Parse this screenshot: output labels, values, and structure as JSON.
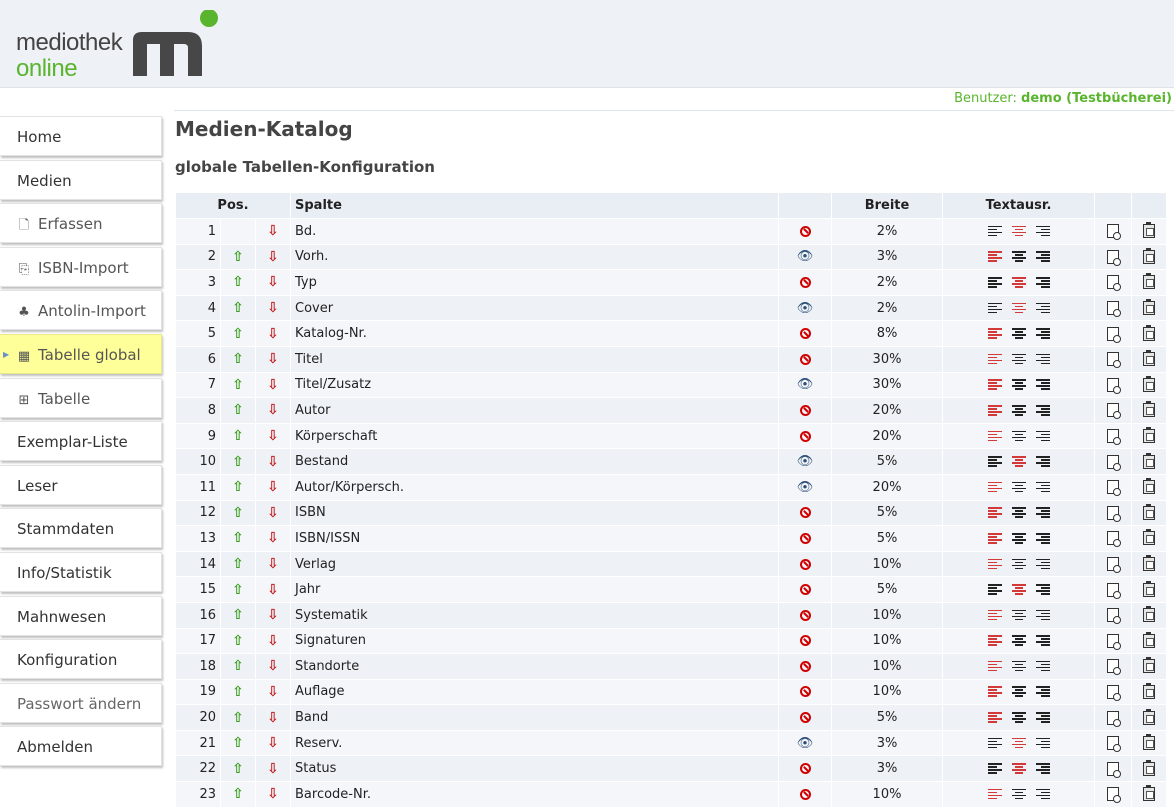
{
  "brand": {
    "line1": "mediothek",
    "line2": "online",
    "green": "#5ab52e"
  },
  "user": {
    "label": "Benutzer:",
    "name": "demo (Testbücherei)"
  },
  "sidebar": {
    "items": [
      {
        "label": "Home",
        "kind": "main"
      },
      {
        "label": "Medien",
        "kind": "main"
      },
      {
        "label": "Erfassen",
        "kind": "sub",
        "icon": "document-icon"
      },
      {
        "label": "ISBN-Import",
        "kind": "sub",
        "icon": "barcode-import-icon"
      },
      {
        "label": "Antolin-Import",
        "kind": "sub",
        "icon": "antolin-icon"
      },
      {
        "label": "Tabelle global",
        "kind": "sub",
        "icon": "table-icon",
        "active": true
      },
      {
        "label": "Tabelle",
        "kind": "sub",
        "icon": "table-edit-icon"
      },
      {
        "label": "Exemplar-Liste",
        "kind": "main"
      },
      {
        "label": "Leser",
        "kind": "main"
      },
      {
        "label": "Stammdaten",
        "kind": "main"
      },
      {
        "label": "Info/Statistik",
        "kind": "main"
      },
      {
        "label": "Mahnwesen",
        "kind": "main"
      },
      {
        "label": "Konfiguration",
        "kind": "main"
      },
      {
        "label": "Passwort ändern",
        "kind": "main",
        "muted": true
      },
      {
        "label": "Abmelden",
        "kind": "main"
      }
    ]
  },
  "main": {
    "title": "Medien-Katalog",
    "subtitle": "globale Tabellen-Konfiguration",
    "table": {
      "headers": {
        "pos": "Pos.",
        "column": "Spalte",
        "width": "Breite",
        "align": "Textausr."
      },
      "rows": [
        {
          "pos": "1",
          "name": "Bd.",
          "visible": false,
          "width": "2%",
          "align": "center"
        },
        {
          "pos": "2",
          "name": "Vorh.",
          "visible": true,
          "width": "3%",
          "align": "left"
        },
        {
          "pos": "3",
          "name": "Typ",
          "visible": false,
          "width": "2%",
          "align": "center"
        },
        {
          "pos": "4",
          "name": "Cover",
          "visible": true,
          "width": "2%",
          "align": "center"
        },
        {
          "pos": "5",
          "name": "Katalog-Nr.",
          "visible": false,
          "width": "8%",
          "align": "left"
        },
        {
          "pos": "6",
          "name": "Titel",
          "visible": false,
          "width": "30%",
          "align": "left"
        },
        {
          "pos": "7",
          "name": "Titel/Zusatz",
          "visible": true,
          "width": "30%",
          "align": "left"
        },
        {
          "pos": "8",
          "name": "Autor",
          "visible": false,
          "width": "20%",
          "align": "left"
        },
        {
          "pos": "9",
          "name": "Körperschaft",
          "visible": false,
          "width": "20%",
          "align": "left"
        },
        {
          "pos": "10",
          "name": "Bestand",
          "visible": true,
          "width": "5%",
          "align": "center"
        },
        {
          "pos": "11",
          "name": "Autor/Körpersch.",
          "visible": true,
          "width": "20%",
          "align": "left"
        },
        {
          "pos": "12",
          "name": "ISBN",
          "visible": false,
          "width": "5%",
          "align": "left"
        },
        {
          "pos": "13",
          "name": "ISBN/ISSN",
          "visible": false,
          "width": "5%",
          "align": "left"
        },
        {
          "pos": "14",
          "name": "Verlag",
          "visible": false,
          "width": "10%",
          "align": "left"
        },
        {
          "pos": "15",
          "name": "Jahr",
          "visible": false,
          "width": "5%",
          "align": "center"
        },
        {
          "pos": "16",
          "name": "Systematik",
          "visible": false,
          "width": "10%",
          "align": "left"
        },
        {
          "pos": "17",
          "name": "Signaturen",
          "visible": false,
          "width": "10%",
          "align": "left"
        },
        {
          "pos": "18",
          "name": "Standorte",
          "visible": false,
          "width": "10%",
          "align": "left"
        },
        {
          "pos": "19",
          "name": "Auflage",
          "visible": false,
          "width": "10%",
          "align": "left"
        },
        {
          "pos": "20",
          "name": "Band",
          "visible": false,
          "width": "5%",
          "align": "left"
        },
        {
          "pos": "21",
          "name": "Reserv.",
          "visible": true,
          "width": "3%",
          "align": "center"
        },
        {
          "pos": "22",
          "name": "Status",
          "visible": false,
          "width": "3%",
          "align": "center"
        },
        {
          "pos": "23",
          "name": "Barcode-Nr.",
          "visible": false,
          "width": "10%",
          "align": "left"
        }
      ]
    }
  }
}
